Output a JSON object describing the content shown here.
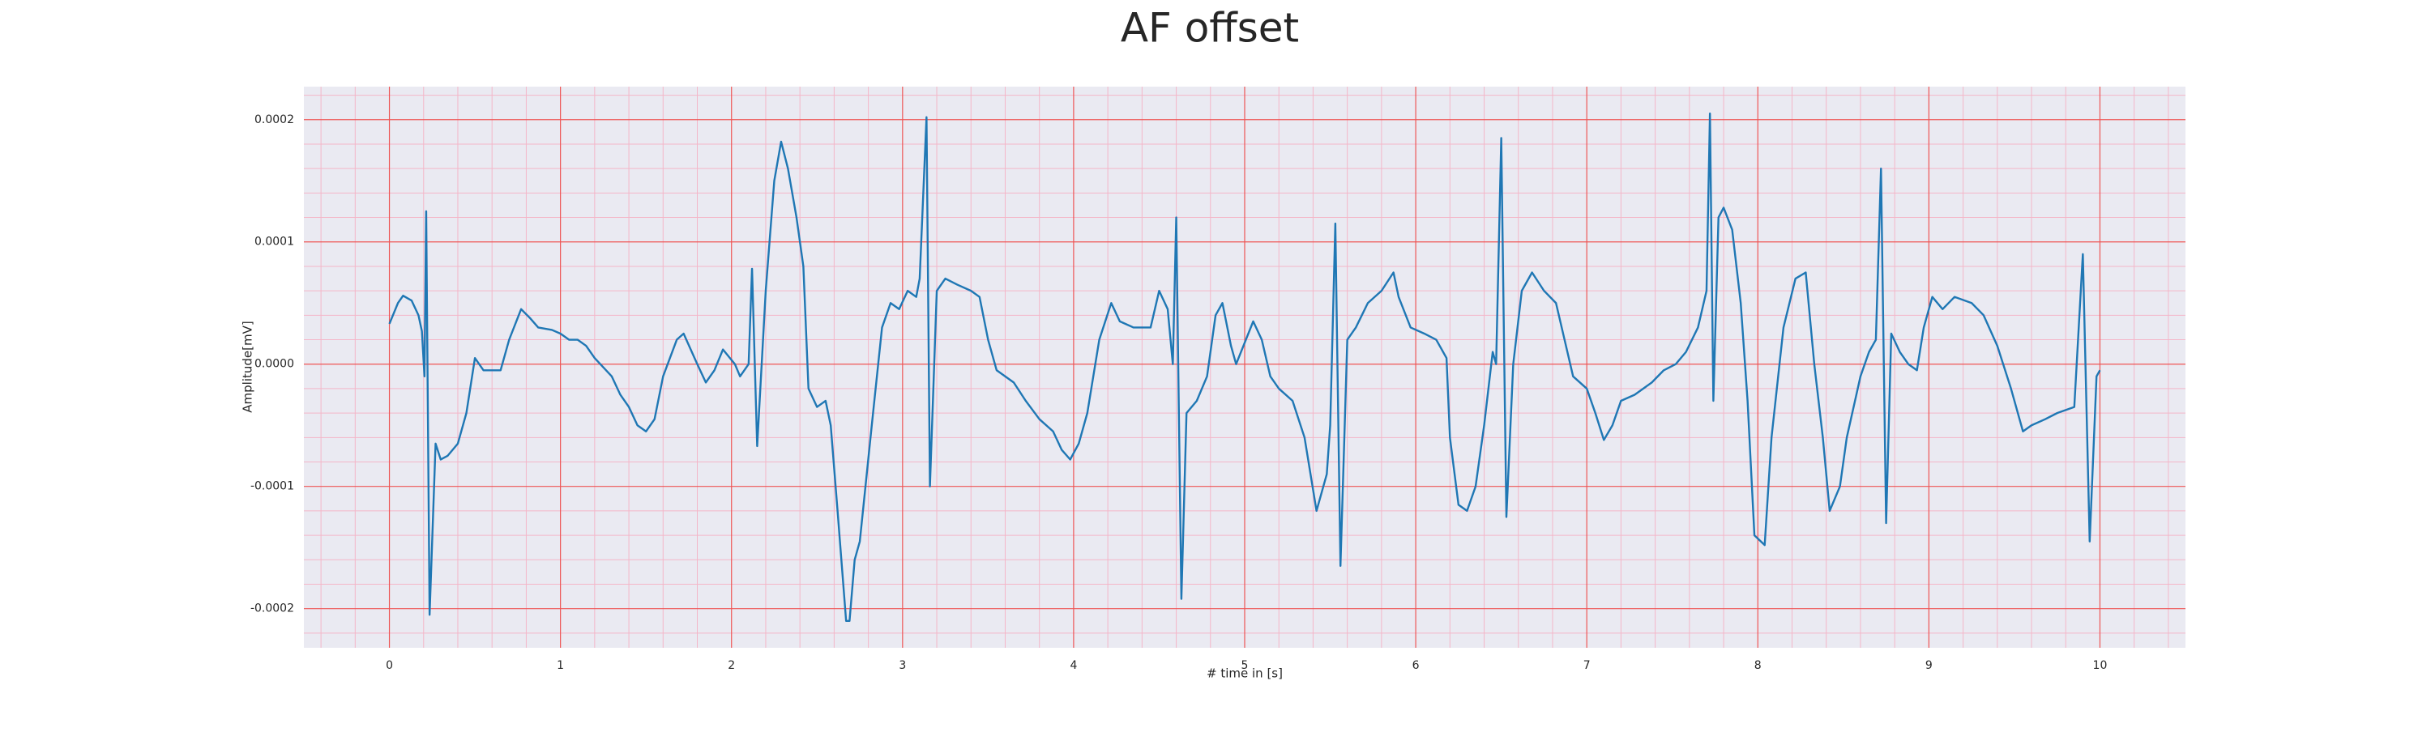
{
  "chart_data": {
    "type": "line",
    "title": "AF offset",
    "xlabel": "# time in [s]",
    "ylabel": "Amplitude[mV]",
    "grid": true,
    "xlim": [
      -0.5,
      10.5
    ],
    "ylim": [
      -0.000232,
      0.000227
    ],
    "xticks": [
      0,
      1,
      2,
      3,
      4,
      5,
      6,
      7,
      8,
      9,
      10
    ],
    "yticks": [
      {
        "value": -0.0002,
        "label": "-0.0002"
      },
      {
        "value": -0.0001,
        "label": "-0.0001"
      },
      {
        "value": 0,
        "label": "0.0000"
      },
      {
        "value": 0.0001,
        "label": "0.0001"
      },
      {
        "value": 0.0002,
        "label": "0.0002"
      }
    ],
    "xminorticks": [
      -0.4,
      -0.2,
      0.2,
      0.4,
      0.6,
      0.8,
      1.2,
      1.4,
      1.6,
      1.8,
      2.2,
      2.4,
      2.6,
      2.8,
      3.2,
      3.4,
      3.6,
      3.8,
      4.2,
      4.4,
      4.6,
      4.8,
      5.2,
      5.4,
      5.6,
      5.8,
      6.2,
      6.4,
      6.6,
      6.8,
      7.2,
      7.4,
      7.6,
      7.8,
      8.2,
      8.4,
      8.6,
      8.8,
      9.2,
      9.4,
      9.6,
      9.8,
      10.2,
      10.4
    ],
    "yminorticks": [
      -0.00022,
      -0.00018,
      -0.00016,
      -0.00014,
      -0.00012,
      -8e-05,
      -6e-05,
      -4e-05,
      -2e-05,
      2e-05,
      4e-05,
      6e-05,
      8e-05,
      0.00012,
      0.00014,
      0.00016,
      0.00018,
      0.00022
    ],
    "series": [
      {
        "color": "#1f77b4",
        "x": [
          0,
          0.05,
          0.08,
          0.13,
          0.17,
          0.19,
          0.205,
          0.215,
          0.235,
          0.27,
          0.3,
          0.34,
          0.4,
          0.45,
          0.5,
          0.55,
          0.65,
          0.7,
          0.77,
          0.82,
          0.87,
          0.95,
          1.0,
          1.05,
          1.1,
          1.15,
          1.2,
          1.3,
          1.35,
          1.4,
          1.45,
          1.5,
          1.55,
          1.6,
          1.68,
          1.72,
          1.8,
          1.85,
          1.9,
          1.95,
          2.02,
          2.05,
          2.1,
          2.12,
          2.15,
          2.2,
          2.25,
          2.29,
          2.33,
          2.38,
          2.42,
          2.45,
          2.5,
          2.55,
          2.58,
          2.62,
          2.67,
          2.69,
          2.72,
          2.75,
          2.82,
          2.88,
          2.93,
          2.98,
          3.03,
          3.08,
          3.1,
          3.14,
          3.16,
          3.2,
          3.25,
          3.32,
          3.4,
          3.45,
          3.5,
          3.55,
          3.65,
          3.72,
          3.8,
          3.88,
          3.93,
          3.98,
          4.03,
          4.08,
          4.15,
          4.22,
          4.27,
          4.35,
          4.45,
          4.5,
          4.55,
          4.58,
          4.6,
          4.63,
          4.66,
          4.72,
          4.78,
          4.83,
          4.87,
          4.92,
          4.95,
          5.05,
          5.1,
          5.15,
          5.2,
          5.28,
          5.35,
          5.42,
          5.48,
          5.5,
          5.53,
          5.56,
          5.6,
          5.65,
          5.72,
          5.8,
          5.87,
          5.9,
          5.97,
          6.05,
          6.12,
          6.18,
          6.2,
          6.25,
          6.3,
          6.35,
          6.4,
          6.45,
          6.47,
          6.5,
          6.53,
          6.57,
          6.62,
          6.68,
          6.75,
          6.82,
          6.87,
          6.92,
          7.0,
          7.05,
          7.1,
          7.15,
          7.2,
          7.28,
          7.38,
          7.45,
          7.52,
          7.58,
          7.65,
          7.7,
          7.72,
          7.74,
          7.77,
          7.8,
          7.85,
          7.9,
          7.94,
          7.98,
          8.04,
          8.08,
          8.15,
          8.22,
          8.28,
          8.33,
          8.38,
          8.42,
          8.48,
          8.52,
          8.6,
          8.65,
          8.69,
          8.72,
          8.75,
          8.78,
          8.83,
          8.88,
          8.93,
          8.97,
          9.02,
          9.08,
          9.15,
          9.25,
          9.32,
          9.4,
          9.48,
          9.55,
          9.6,
          9.68,
          9.75,
          9.85,
          9.9,
          9.94,
          9.98,
          10.0
        ],
        "values": [
          3.3e-05,
          5e-05,
          5.6e-05,
          5.2e-05,
          4e-05,
          2.7e-05,
          -1e-05,
          0.000125,
          -0.000205,
          -6.5e-05,
          -7.8e-05,
          -7.5e-05,
          -6.5e-05,
          -4e-05,
          5e-06,
          -5e-06,
          -5e-06,
          2e-05,
          4.5e-05,
          3.8e-05,
          3e-05,
          2.8e-05,
          2.5e-05,
          2e-05,
          2e-05,
          1.5e-05,
          5e-06,
          -1e-05,
          -2.5e-05,
          -3.5e-05,
          -5e-05,
          -5.5e-05,
          -4.5e-05,
          -1e-05,
          2e-05,
          2.5e-05,
          0,
          -1.5e-05,
          -5e-06,
          1.2e-05,
          0,
          -1e-05,
          0,
          7.8e-05,
          -6.7e-05,
          6e-05,
          0.00015,
          0.000182,
          0.00016,
          0.00012,
          8e-05,
          -2e-05,
          -3.5e-05,
          -3e-05,
          -5e-05,
          -0.00012,
          -0.00021,
          -0.00021,
          -0.00016,
          -0.000145,
          -5e-05,
          3e-05,
          5e-05,
          4.5e-05,
          6e-05,
          5.5e-05,
          7e-05,
          0.000202,
          -0.0001,
          6e-05,
          7e-05,
          6.5e-05,
          6e-05,
          5.5e-05,
          2e-05,
          -5e-06,
          -1.5e-05,
          -3e-05,
          -4.5e-05,
          -5.5e-05,
          -7e-05,
          -7.8e-05,
          -6.5e-05,
          -4e-05,
          2e-05,
          5e-05,
          3.5e-05,
          3e-05,
          3e-05,
          6e-05,
          4.5e-05,
          0,
          0.00012,
          -0.000192,
          -4e-05,
          -3e-05,
          -1e-05,
          4e-05,
          5e-05,
          1.5e-05,
          0,
          3.5e-05,
          2e-05,
          -1e-05,
          -2e-05,
          -3e-05,
          -6e-05,
          -0.00012,
          -9e-05,
          -5e-05,
          0.000115,
          -0.000165,
          2e-05,
          3e-05,
          5e-05,
          6e-05,
          7.5e-05,
          5.5e-05,
          3e-05,
          2.5e-05,
          2e-05,
          5e-06,
          -6e-05,
          -0.000115,
          -0.00012,
          -0.0001,
          -5e-05,
          1e-05,
          0,
          0.000185,
          -0.000125,
          0,
          6e-05,
          7.5e-05,
          6e-05,
          5e-05,
          2e-05,
          -1e-05,
          -2e-05,
          -4e-05,
          -6.2e-05,
          -5e-05,
          -3e-05,
          -2.5e-05,
          -1.5e-05,
          -5e-06,
          0,
          1e-05,
          3e-05,
          6e-05,
          0.000205,
          -3e-05,
          0.00012,
          0.000128,
          0.00011,
          5e-05,
          -3e-05,
          -0.00014,
          -0.000148,
          -6e-05,
          3e-05,
          7e-05,
          7.5e-05,
          0,
          -6e-05,
          -0.00012,
          -0.0001,
          -6e-05,
          -1e-05,
          1e-05,
          2e-05,
          0.00016,
          -0.00013,
          2.5e-05,
          1e-05,
          0,
          -5e-06,
          3e-05,
          5.5e-05,
          4.5e-05,
          5.5e-05,
          5e-05,
          4e-05,
          1.5e-05,
          -2e-05,
          -5.5e-05,
          -5e-05,
          -4.5e-05,
          -4e-05,
          -3.5e-05,
          9e-05,
          -0.000145,
          -1e-05,
          -5e-06
        ]
      }
    ]
  }
}
